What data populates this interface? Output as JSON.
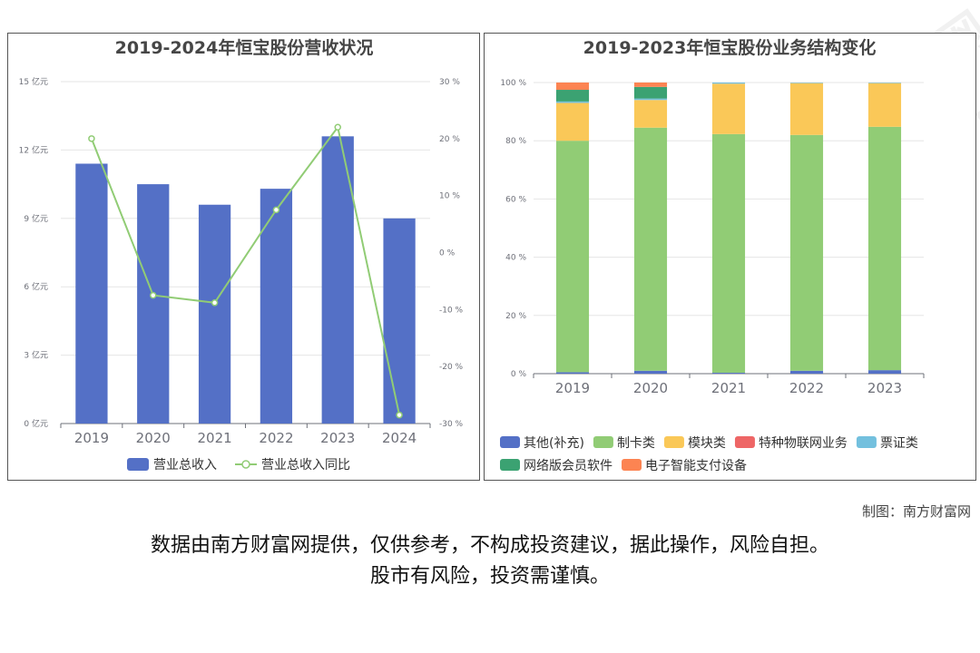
{
  "charts": {
    "left": {
      "title": "2019-2024年恒宝股份营收状况",
      "categories": [
        "2019",
        "2020",
        "2021",
        "2022",
        "2023",
        "2024"
      ],
      "y_ticks": [
        "0 亿元",
        "3 亿元",
        "6 亿元",
        "9 亿元",
        "12 亿元",
        "15 亿元"
      ],
      "y2_ticks": [
        "-30 %",
        "-20 %",
        "-10 %",
        "0 %",
        "10 %",
        "20 %",
        "30 %"
      ],
      "legend": [
        "营业总收入",
        "营业总收入同比"
      ]
    },
    "right": {
      "title": "2019-2023年恒宝股份业务结构变化",
      "categories": [
        "2019",
        "2020",
        "2021",
        "2022",
        "2023"
      ],
      "y_ticks": [
        "0 %",
        "20 %",
        "40 %",
        "60 %",
        "80 %",
        "100 %"
      ],
      "legend": [
        "其他(补充)",
        "制卡类",
        "模块类",
        "特种物联网业务",
        "票证类",
        "网络版会员软件",
        "电子智能支付设备"
      ]
    }
  },
  "chart_data": [
    {
      "type": "bar",
      "title": "2019-2024年恒宝股份营收状况",
      "categories": [
        "2019",
        "2020",
        "2021",
        "2022",
        "2023",
        "2024"
      ],
      "ylim": [
        0,
        15
      ],
      "y2lim": [
        -30,
        30
      ],
      "series": [
        {
          "name": "营业总收入",
          "kind": "bar",
          "axis": "left",
          "color": "#5470c6",
          "values": [
            11.4,
            10.5,
            9.6,
            10.3,
            12.6,
            9.0
          ]
        },
        {
          "name": "营业总收入同比",
          "kind": "line",
          "axis": "right",
          "color": "#91cc75",
          "values": [
            20.0,
            -7.5,
            -8.8,
            7.5,
            22.0,
            -28.5
          ]
        }
      ],
      "grid": true,
      "legend_position": "bottom"
    },
    {
      "type": "bar",
      "stacked": true,
      "title": "2019-2023年恒宝股份业务结构变化",
      "categories": [
        "2019",
        "2020",
        "2021",
        "2022",
        "2023"
      ],
      "ylim": [
        0,
        100
      ],
      "series": [
        {
          "name": "其他(补充)",
          "color": "#5470c6",
          "values": [
            0.5,
            1.0,
            0.3,
            1.0,
            1.2
          ]
        },
        {
          "name": "制卡类",
          "color": "#91cc75",
          "values": [
            79.5,
            83.5,
            82.0,
            81.0,
            83.6
          ]
        },
        {
          "name": "模块类",
          "color": "#fac858",
          "values": [
            13.0,
            9.5,
            17.3,
            17.8,
            15.0
          ]
        },
        {
          "name": "特种物联网业务",
          "color": "#ee6666",
          "values": [
            0.0,
            0.0,
            0.0,
            0.0,
            0.0
          ]
        },
        {
          "name": "票证类",
          "color": "#73c0de",
          "values": [
            0.5,
            0.5,
            0.4,
            0.2,
            0.2
          ]
        },
        {
          "name": "网络版会员软件",
          "color": "#3ba272",
          "values": [
            4.0,
            4.0,
            0.0,
            0.0,
            0.0
          ]
        },
        {
          "name": "电子智能支付设备",
          "color": "#fc8452",
          "values": [
            2.5,
            1.5,
            0.0,
            0.0,
            0.0
          ]
        }
      ],
      "grid": true,
      "legend_position": "bottom"
    }
  ],
  "footer": {
    "credit": "制图：南方财富网",
    "disclaimer_line1": "数据由南方财富网提供，仅供参考，不构成投资建议，据此操作，风险自担。",
    "disclaimer_line2": "股市有风险，投资需谨慎。"
  },
  "watermark": {
    "text_cn": "南方财富网",
    "text_en": "southmoney.com"
  }
}
